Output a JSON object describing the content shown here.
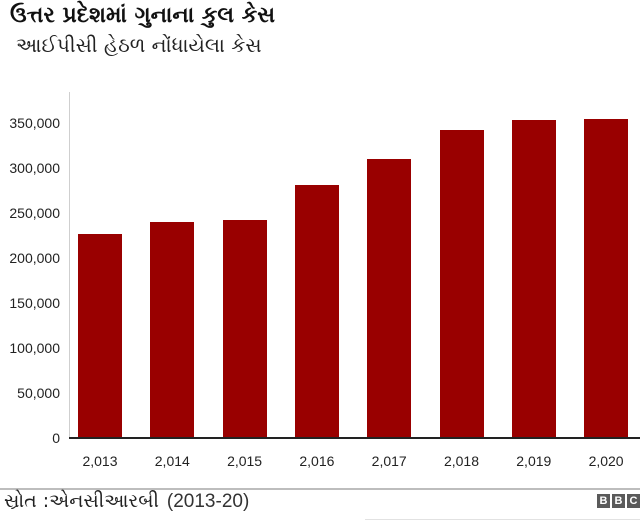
{
  "header": {
    "title": "ઉત્તર પ્રદેશમાં ગુનાના કુલ કેસ",
    "subtitle": "આઈપીસી હેઠળ નોંધાયેલા કેસ"
  },
  "footer": {
    "source_label": "સ્રોત :એનસીઆરબી",
    "years": "(2013-20)",
    "logo_letters": [
      "B",
      "B",
      "C"
    ]
  },
  "colors": {
    "bar": "#990000",
    "axis": "#222222",
    "logo_box": "#5a5a5a"
  },
  "chart_data": {
    "type": "bar",
    "title": "ઉત્તર પ્રદેશમાં ગુનાના કુલ કેસ",
    "subtitle": "આઈપીસી હેઠળ નોંધાયેલા કેસ",
    "xlabel": "",
    "ylabel": "",
    "categories": [
      "2,013",
      "2,014",
      "2,015",
      "2,016",
      "2,017",
      "2,018",
      "2,019",
      "2,020"
    ],
    "values": [
      226700,
      240000,
      242200,
      281100,
      310000,
      342200,
      353300,
      354400
    ],
    "ylim": [
      0,
      350000
    ],
    "yticks": [
      0,
      50000,
      100000,
      150000,
      200000,
      250000,
      300000,
      350000
    ],
    "ytick_labels": [
      "0",
      "50,000",
      "100,000",
      "150,000",
      "200,000",
      "250,000",
      "300,000",
      "350,000"
    ],
    "grid": false,
    "legend": null,
    "source": "સ્રોત :એનસીઆરબી (2013-20)"
  }
}
